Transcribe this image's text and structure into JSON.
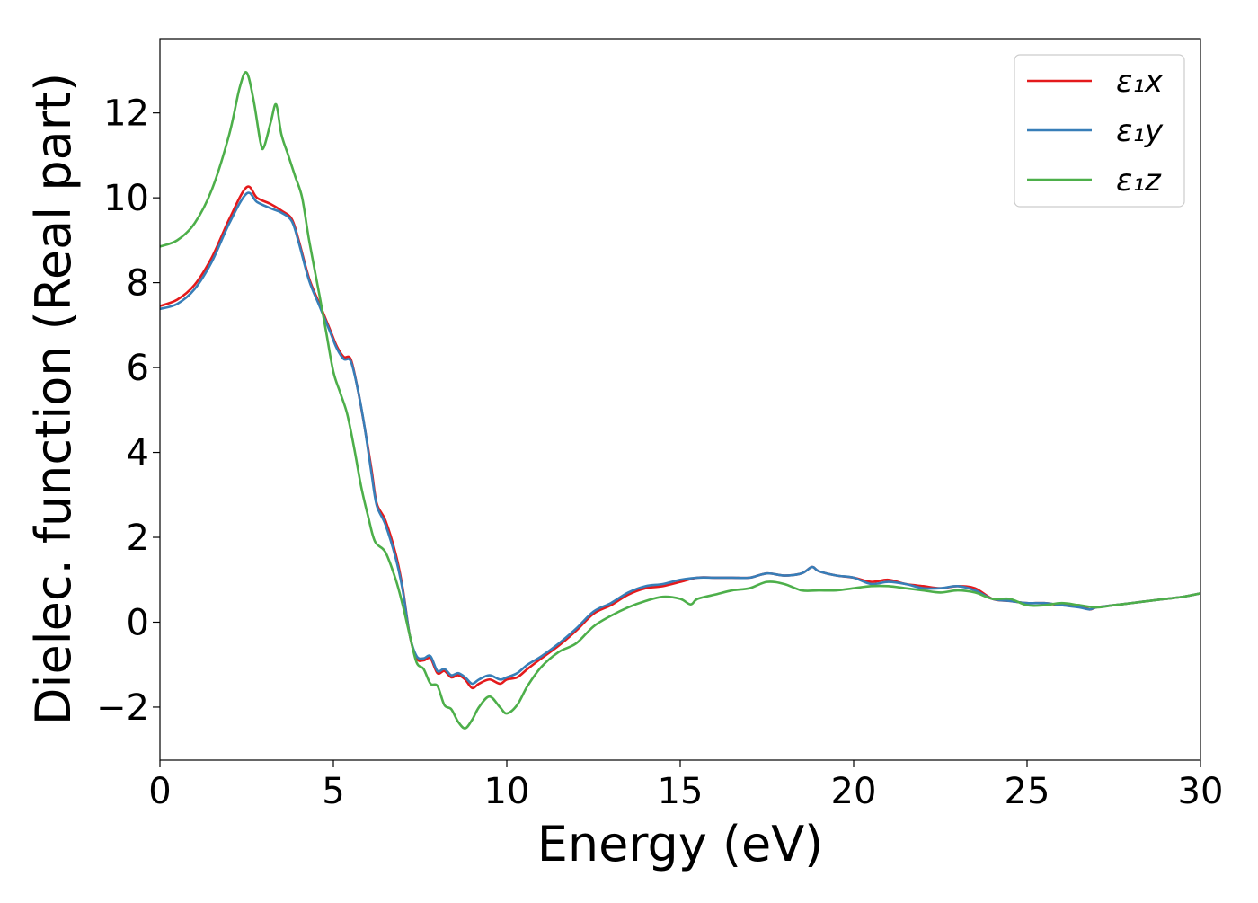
{
  "chart_data": {
    "type": "line",
    "xlabel": "Energy (eV)",
    "ylabel": "Dielec. function (Real part)",
    "xlim": [
      0,
      30
    ],
    "ylim": [
      -3.25,
      13.75
    ],
    "xticks": [
      0,
      5,
      10,
      15,
      20,
      25,
      30
    ],
    "xtick_labels": [
      "0",
      "5",
      "10",
      "15",
      "20",
      "25",
      "30"
    ],
    "yticks": [
      -2,
      0,
      2,
      4,
      6,
      8,
      10,
      12
    ],
    "ytick_labels": [
      "−2",
      "0",
      "2",
      "4",
      "6",
      "8",
      "10",
      "12"
    ],
    "grid": false,
    "legend": {
      "position": "top-right",
      "entries": [
        {
          "label": "ε₁x",
          "color": "#e41a1c"
        },
        {
          "label": "ε₁y",
          "color": "#377eb8"
        },
        {
          "label": "ε₁z",
          "color": "#4daf4a"
        }
      ]
    },
    "series": [
      {
        "name": "ε₁x",
        "color": "#e41a1c",
        "points": [
          [
            0,
            7.45
          ],
          [
            0.5,
            7.6
          ],
          [
            1.0,
            7.95
          ],
          [
            1.5,
            8.6
          ],
          [
            2.0,
            9.5
          ],
          [
            2.5,
            10.25
          ],
          [
            2.8,
            10.0
          ],
          [
            3.2,
            9.85
          ],
          [
            3.5,
            9.7
          ],
          [
            3.8,
            9.5
          ],
          [
            4.0,
            9.0
          ],
          [
            4.3,
            8.1
          ],
          [
            4.6,
            7.5
          ],
          [
            4.9,
            6.9
          ],
          [
            5.1,
            6.5
          ],
          [
            5.3,
            6.25
          ],
          [
            5.5,
            6.2
          ],
          [
            5.7,
            5.5
          ],
          [
            5.9,
            4.6
          ],
          [
            6.1,
            3.6
          ],
          [
            6.25,
            2.8
          ],
          [
            6.5,
            2.4
          ],
          [
            6.8,
            1.6
          ],
          [
            7.0,
            0.8
          ],
          [
            7.2,
            -0.3
          ],
          [
            7.4,
            -0.85
          ],
          [
            7.6,
            -0.9
          ],
          [
            7.8,
            -0.85
          ],
          [
            8.0,
            -1.2
          ],
          [
            8.2,
            -1.15
          ],
          [
            8.4,
            -1.3
          ],
          [
            8.6,
            -1.25
          ],
          [
            8.8,
            -1.35
          ],
          [
            9.0,
            -1.55
          ],
          [
            9.2,
            -1.45
          ],
          [
            9.5,
            -1.35
          ],
          [
            9.8,
            -1.45
          ],
          [
            10.0,
            -1.35
          ],
          [
            10.3,
            -1.3
          ],
          [
            10.6,
            -1.1
          ],
          [
            11.0,
            -0.85
          ],
          [
            11.5,
            -0.55
          ],
          [
            12.0,
            -0.2
          ],
          [
            12.5,
            0.2
          ],
          [
            13.0,
            0.4
          ],
          [
            13.5,
            0.65
          ],
          [
            14.0,
            0.8
          ],
          [
            14.5,
            0.85
          ],
          [
            15.0,
            0.95
          ],
          [
            15.5,
            1.05
          ],
          [
            16.0,
            1.05
          ],
          [
            16.5,
            1.05
          ],
          [
            17.0,
            1.05
          ],
          [
            17.5,
            1.15
          ],
          [
            18.0,
            1.1
          ],
          [
            18.5,
            1.15
          ],
          [
            18.8,
            1.3
          ],
          [
            19.0,
            1.2
          ],
          [
            19.5,
            1.1
          ],
          [
            20.0,
            1.05
          ],
          [
            20.5,
            0.95
          ],
          [
            21.0,
            1.0
          ],
          [
            21.5,
            0.9
          ],
          [
            22.0,
            0.85
          ],
          [
            22.5,
            0.8
          ],
          [
            23.0,
            0.85
          ],
          [
            23.5,
            0.8
          ],
          [
            24.0,
            0.55
          ],
          [
            24.5,
            0.5
          ],
          [
            25.0,
            0.45
          ],
          [
            25.5,
            0.45
          ],
          [
            26.0,
            0.4
          ],
          [
            26.5,
            0.4
          ],
          [
            26.8,
            0.3
          ],
          [
            27.0,
            0.35
          ],
          [
            27.5,
            0.4
          ],
          [
            28.0,
            0.45
          ],
          [
            28.5,
            0.5
          ],
          [
            29.0,
            0.55
          ],
          [
            29.5,
            0.6
          ],
          [
            30.0,
            0.68
          ]
        ]
      },
      {
        "name": "ε₁y",
        "color": "#377eb8",
        "points": [
          [
            0,
            7.38
          ],
          [
            0.5,
            7.5
          ],
          [
            1.0,
            7.85
          ],
          [
            1.5,
            8.5
          ],
          [
            2.0,
            9.4
          ],
          [
            2.5,
            10.1
          ],
          [
            2.8,
            9.9
          ],
          [
            3.2,
            9.75
          ],
          [
            3.5,
            9.65
          ],
          [
            3.8,
            9.45
          ],
          [
            4.0,
            8.95
          ],
          [
            4.3,
            8.05
          ],
          [
            4.6,
            7.45
          ],
          [
            4.9,
            6.85
          ],
          [
            5.1,
            6.45
          ],
          [
            5.3,
            6.2
          ],
          [
            5.5,
            6.15
          ],
          [
            5.7,
            5.5
          ],
          [
            5.9,
            4.6
          ],
          [
            6.1,
            3.5
          ],
          [
            6.25,
            2.75
          ],
          [
            6.5,
            2.3
          ],
          [
            6.8,
            1.5
          ],
          [
            7.0,
            0.75
          ],
          [
            7.2,
            -0.3
          ],
          [
            7.4,
            -0.8
          ],
          [
            7.6,
            -0.85
          ],
          [
            7.8,
            -0.8
          ],
          [
            8.0,
            -1.15
          ],
          [
            8.2,
            -1.1
          ],
          [
            8.4,
            -1.25
          ],
          [
            8.6,
            -1.2
          ],
          [
            8.8,
            -1.3
          ],
          [
            9.0,
            -1.45
          ],
          [
            9.2,
            -1.35
          ],
          [
            9.5,
            -1.25
          ],
          [
            9.8,
            -1.35
          ],
          [
            10.0,
            -1.3
          ],
          [
            10.3,
            -1.2
          ],
          [
            10.6,
            -1.0
          ],
          [
            11.0,
            -0.8
          ],
          [
            11.5,
            -0.5
          ],
          [
            12.0,
            -0.15
          ],
          [
            12.5,
            0.25
          ],
          [
            13.0,
            0.45
          ],
          [
            13.5,
            0.7
          ],
          [
            14.0,
            0.85
          ],
          [
            14.5,
            0.9
          ],
          [
            15.0,
            1.0
          ],
          [
            15.5,
            1.05
          ],
          [
            16.0,
            1.05
          ],
          [
            16.5,
            1.05
          ],
          [
            17.0,
            1.05
          ],
          [
            17.5,
            1.15
          ],
          [
            18.0,
            1.1
          ],
          [
            18.5,
            1.15
          ],
          [
            18.8,
            1.3
          ],
          [
            19.0,
            1.2
          ],
          [
            19.5,
            1.1
          ],
          [
            20.0,
            1.05
          ],
          [
            20.5,
            0.9
          ],
          [
            21.0,
            0.95
          ],
          [
            21.5,
            0.9
          ],
          [
            22.0,
            0.8
          ],
          [
            22.5,
            0.8
          ],
          [
            23.0,
            0.85
          ],
          [
            23.5,
            0.75
          ],
          [
            24.0,
            0.55
          ],
          [
            24.5,
            0.5
          ],
          [
            25.0,
            0.45
          ],
          [
            25.5,
            0.45
          ],
          [
            26.0,
            0.4
          ],
          [
            26.5,
            0.35
          ],
          [
            26.8,
            0.3
          ],
          [
            27.0,
            0.35
          ],
          [
            27.5,
            0.4
          ],
          [
            28.0,
            0.45
          ],
          [
            28.5,
            0.5
          ],
          [
            29.0,
            0.55
          ],
          [
            29.5,
            0.6
          ],
          [
            30.0,
            0.68
          ]
        ]
      },
      {
        "name": "ε₁z",
        "color": "#4daf4a",
        "points": [
          [
            0,
            8.85
          ],
          [
            0.5,
            9.0
          ],
          [
            1.0,
            9.4
          ],
          [
            1.5,
            10.2
          ],
          [
            2.0,
            11.5
          ],
          [
            2.3,
            12.6
          ],
          [
            2.5,
            12.95
          ],
          [
            2.7,
            12.3
          ],
          [
            2.9,
            11.3
          ],
          [
            3.0,
            11.2
          ],
          [
            3.2,
            11.8
          ],
          [
            3.35,
            12.2
          ],
          [
            3.5,
            11.5
          ],
          [
            3.7,
            11.0
          ],
          [
            3.9,
            10.5
          ],
          [
            4.1,
            10.0
          ],
          [
            4.3,
            9.0
          ],
          [
            4.6,
            7.7
          ],
          [
            4.8,
            6.8
          ],
          [
            5.0,
            5.9
          ],
          [
            5.2,
            5.4
          ],
          [
            5.4,
            4.9
          ],
          [
            5.6,
            4.1
          ],
          [
            5.8,
            3.2
          ],
          [
            6.0,
            2.5
          ],
          [
            6.2,
            1.9
          ],
          [
            6.5,
            1.65
          ],
          [
            6.8,
            1.0
          ],
          [
            7.0,
            0.4
          ],
          [
            7.2,
            -0.3
          ],
          [
            7.4,
            -0.95
          ],
          [
            7.6,
            -1.1
          ],
          [
            7.8,
            -1.45
          ],
          [
            8.0,
            -1.5
          ],
          [
            8.2,
            -1.95
          ],
          [
            8.4,
            -2.05
          ],
          [
            8.6,
            -2.35
          ],
          [
            8.8,
            -2.5
          ],
          [
            9.0,
            -2.3
          ],
          [
            9.2,
            -2.0
          ],
          [
            9.5,
            -1.75
          ],
          [
            9.8,
            -2.0
          ],
          [
            10.0,
            -2.15
          ],
          [
            10.3,
            -1.95
          ],
          [
            10.6,
            -1.5
          ],
          [
            11.0,
            -1.05
          ],
          [
            11.5,
            -0.7
          ],
          [
            12.0,
            -0.5
          ],
          [
            12.5,
            -0.1
          ],
          [
            13.0,
            0.15
          ],
          [
            13.5,
            0.35
          ],
          [
            14.0,
            0.5
          ],
          [
            14.5,
            0.6
          ],
          [
            15.0,
            0.55
          ],
          [
            15.3,
            0.42
          ],
          [
            15.5,
            0.55
          ],
          [
            16.0,
            0.65
          ],
          [
            16.5,
            0.75
          ],
          [
            17.0,
            0.8
          ],
          [
            17.5,
            0.95
          ],
          [
            18.0,
            0.9
          ],
          [
            18.5,
            0.75
          ],
          [
            19.0,
            0.75
          ],
          [
            19.5,
            0.75
          ],
          [
            20.0,
            0.8
          ],
          [
            20.5,
            0.85
          ],
          [
            21.0,
            0.85
          ],
          [
            21.5,
            0.8
          ],
          [
            22.0,
            0.75
          ],
          [
            22.5,
            0.7
          ],
          [
            23.0,
            0.75
          ],
          [
            23.5,
            0.7
          ],
          [
            24.0,
            0.55
          ],
          [
            24.5,
            0.55
          ],
          [
            25.0,
            0.4
          ],
          [
            25.5,
            0.4
          ],
          [
            26.0,
            0.45
          ],
          [
            26.5,
            0.4
          ],
          [
            27.0,
            0.35
          ],
          [
            27.5,
            0.4
          ],
          [
            28.0,
            0.45
          ],
          [
            28.5,
            0.5
          ],
          [
            29.0,
            0.55
          ],
          [
            29.5,
            0.6
          ],
          [
            30.0,
            0.68
          ]
        ]
      }
    ]
  }
}
